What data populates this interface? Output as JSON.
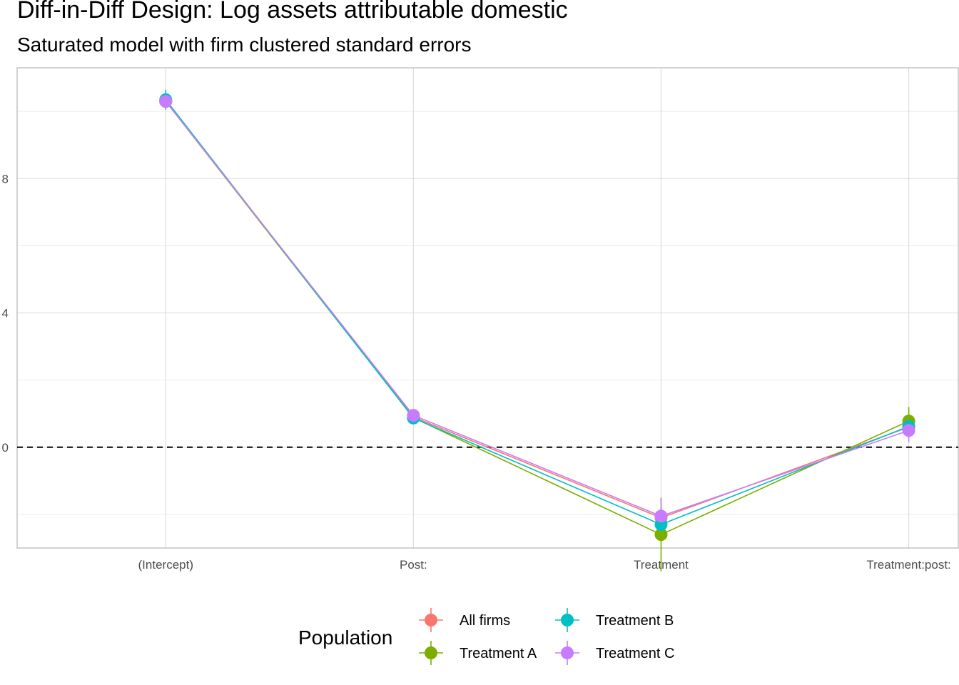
{
  "chart_data": {
    "type": "line",
    "title": "Diff-in-Diff Design: Log assets attributable domestic",
    "subtitle": "Saturated model with firm clustered standard errors",
    "xlabel": "",
    "ylabel": "",
    "categories": [
      "(Intercept)",
      "Post:",
      "Treatment",
      "Treatment:post:"
    ],
    "y_ticks": [
      0,
      4,
      8
    ],
    "ylim": [
      -3.0,
      11.3
    ],
    "grid": true,
    "reference_line": {
      "y": 0,
      "style": "dashed"
    },
    "legend": {
      "title": "Population",
      "placement": "bottom"
    },
    "series": [
      {
        "name": "All firms",
        "color": "#F8766D",
        "values": [
          10.3,
          0.9,
          -2.1,
          0.6
        ],
        "lower": [
          10.1,
          0.8,
          -2.4,
          0.4
        ],
        "upper": [
          10.5,
          1.0,
          -1.8,
          0.8
        ]
      },
      {
        "name": "Treatment A",
        "color": "#7CAE00",
        "values": [
          10.3,
          0.88,
          -2.6,
          0.78
        ],
        "lower": [
          10.1,
          0.78,
          -3.7,
          0.4
        ],
        "upper": [
          10.5,
          0.98,
          -1.5,
          1.2
        ]
      },
      {
        "name": "Treatment B",
        "color": "#00BFC4",
        "values": [
          10.35,
          0.87,
          -2.3,
          0.62
        ],
        "lower": [
          10.05,
          0.77,
          -2.7,
          0.42
        ],
        "upper": [
          10.65,
          0.97,
          -1.9,
          0.82
        ]
      },
      {
        "name": "Treatment C",
        "color": "#C77CFF",
        "values": [
          10.3,
          0.95,
          -2.05,
          0.5
        ],
        "lower": [
          10.1,
          0.85,
          -2.6,
          0.15
        ],
        "upper": [
          10.5,
          1.05,
          -1.5,
          0.85
        ]
      }
    ]
  }
}
